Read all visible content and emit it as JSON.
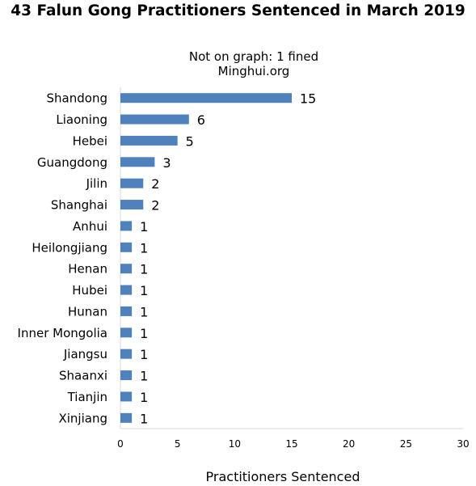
{
  "chart_data": {
    "type": "bar",
    "orientation": "horizontal",
    "title": "43 Falun Gong Practitioners Sentenced in March 2019",
    "subtitle_lines": [
      "Not on graph: 1 fined",
      "Minghui.org"
    ],
    "xlabel": "Practitioners Sentenced",
    "ylabel": "",
    "categories": [
      "Shandong",
      "Liaoning",
      "Hebei",
      "Guangdong",
      "Jilin",
      "Shanghai",
      "Anhui",
      "Heilongjiang",
      "Henan",
      "Hubei",
      "Hunan",
      "Inner Mongolia",
      "Jiangsu",
      "Shaanxi",
      "Tianjin",
      "Xinjiang"
    ],
    "values": [
      15,
      6,
      5,
      3,
      2,
      2,
      1,
      1,
      1,
      1,
      1,
      1,
      1,
      1,
      1,
      1
    ],
    "xlim": [
      0,
      30
    ],
    "xticks": [
      0,
      5,
      10,
      15,
      20,
      25,
      30
    ],
    "bar_color": "#4f81bd",
    "grid": false,
    "data_labels": true,
    "legend": "none"
  }
}
